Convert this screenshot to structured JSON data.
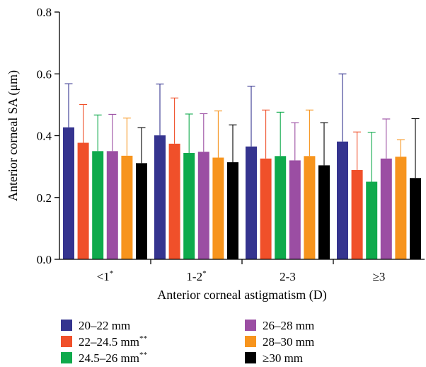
{
  "chart_data": {
    "type": "bar",
    "title": "",
    "xlabel": "Anterior corneal astigmatism (D)",
    "ylabel": "Anterior corneal SA (μm)",
    "ylim": [
      0,
      0.8
    ],
    "yticks": [
      "0.0",
      "0.2",
      "0.4",
      "0.6",
      "0.8"
    ],
    "ytick_values": [
      0,
      0.2,
      0.4,
      0.6,
      0.8
    ],
    "categories": [
      {
        "label": "<1",
        "sup": "*"
      },
      {
        "label": "1-2",
        "sup": "*"
      },
      {
        "label": "2-3",
        "sup": ""
      },
      {
        "label": "≥3",
        "sup": ""
      }
    ],
    "error_bars": "upper",
    "legend_position": "bottom",
    "series": [
      {
        "name": "20–22 mm",
        "sup": "",
        "color": "#35348f",
        "values": [
          0.427,
          0.401,
          0.365,
          0.381
        ],
        "errors": [
          0.141,
          0.166,
          0.195,
          0.219
        ]
      },
      {
        "name": "22–24.5 mm",
        "sup": "**",
        "color": "#f0502a",
        "values": [
          0.377,
          0.374,
          0.326,
          0.289
        ],
        "errors": [
          0.124,
          0.148,
          0.157,
          0.123
        ]
      },
      {
        "name": "24.5–26 mm",
        "sup": "**",
        "color": "#0faa4c",
        "values": [
          0.35,
          0.344,
          0.334,
          0.251
        ],
        "errors": [
          0.117,
          0.126,
          0.142,
          0.16
        ]
      },
      {
        "name": "26–28 mm",
        "sup": "",
        "color": "#9b4ea3",
        "values": [
          0.35,
          0.348,
          0.32,
          0.326
        ],
        "errors": [
          0.119,
          0.123,
          0.122,
          0.128
        ]
      },
      {
        "name": "28–30 mm",
        "sup": "",
        "color": "#f7941d",
        "values": [
          0.335,
          0.329,
          0.334,
          0.332
        ],
        "errors": [
          0.122,
          0.151,
          0.149,
          0.055
        ]
      },
      {
        "name": "≥30 mm",
        "sup": "",
        "color": "#000000",
        "values": [
          0.311,
          0.314,
          0.304,
          0.263
        ],
        "errors": [
          0.115,
          0.121,
          0.138,
          0.192
        ]
      }
    ]
  }
}
